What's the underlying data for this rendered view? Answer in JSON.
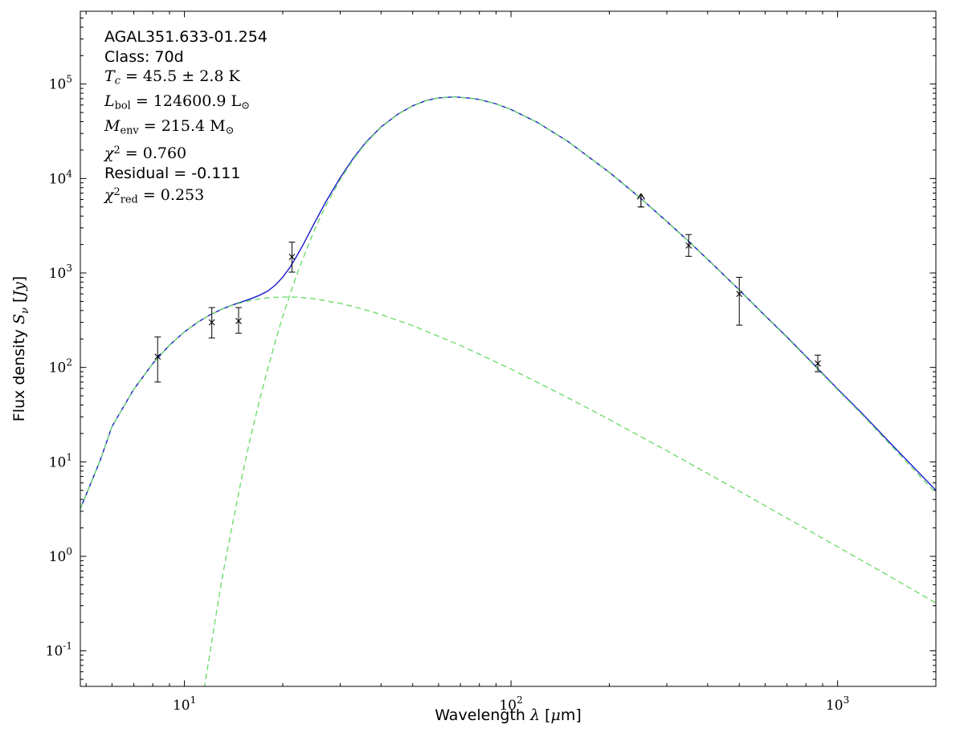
{
  "figure": {
    "background": "#ffffff",
    "annotation_lines": [
      {
        "segments": [
          {
            "t": "AGAL351.633-01.254",
            "s": "sans"
          }
        ]
      },
      {
        "segments": [
          {
            "t": "Class: 70d",
            "s": "sans"
          }
        ]
      },
      {
        "segments": [
          {
            "t": "T",
            "s": "it"
          },
          {
            "t": "c",
            "s": "subit"
          },
          {
            "t": " = 45.5 ± 2.8 K",
            "s": "rm"
          }
        ]
      },
      {
        "segments": [
          {
            "t": "L",
            "s": "it"
          },
          {
            "t": "bol",
            "s": "sub"
          },
          {
            "t": " = 124600.9 L",
            "s": "rm"
          },
          {
            "t": "⊙",
            "s": "sub"
          }
        ]
      },
      {
        "segments": [
          {
            "t": "M",
            "s": "it"
          },
          {
            "t": "env",
            "s": "sub"
          },
          {
            "t": " = 215.4 M",
            "s": "rm"
          },
          {
            "t": "⊙",
            "s": "sub"
          }
        ]
      },
      {
        "segments": [
          {
            "t": "χ",
            "s": "it"
          },
          {
            "t": "2",
            "s": "sup"
          },
          {
            "t": " = 0.760",
            "s": "rm"
          }
        ]
      },
      {
        "segments": [
          {
            "t": "Residual = -0.111",
            "s": "sans"
          }
        ]
      },
      {
        "segments": [
          {
            "t": "χ",
            "s": "it"
          },
          {
            "t": "2",
            "s": "sup"
          },
          {
            "t": "red",
            "s": "sub"
          },
          {
            "t": " = 0.253",
            "s": "rm"
          }
        ]
      }
    ]
  },
  "chart_data": {
    "type": "line",
    "x_scale": "log",
    "y_scale": "log",
    "xlim": [
      4.8,
      2000
    ],
    "ylim": [
      0.042,
      590000
    ],
    "grid": false,
    "legend": false,
    "xlabel": "Wavelength λ [μm]",
    "ylabel": "Flux density S_ν [Jy]",
    "xlabel_segments": [
      {
        "t": "Wavelength ",
        "s": "sans"
      },
      {
        "t": "λ",
        "s": "it"
      },
      {
        "t": " [",
        "s": "sans"
      },
      {
        "t": "μ",
        "s": "it"
      },
      {
        "t": "m]",
        "s": "sans"
      }
    ],
    "ylabel_segments": [
      {
        "t": "Flux density ",
        "s": "sans"
      },
      {
        "t": "S",
        "s": "it"
      },
      {
        "t": "ν",
        "s": "subit"
      },
      {
        "t": " [",
        "s": "sans"
      },
      {
        "t": "Jy",
        "s": "it"
      },
      {
        "t": "]",
        "s": "sans"
      }
    ],
    "x_major_tick_exponents": [
      1,
      2,
      3
    ],
    "y_major_tick_exponents": [
      -1,
      0,
      1,
      2,
      3,
      4,
      5
    ],
    "colors": {
      "model_fit": "#1a1acd",
      "components": "#6fdc6f",
      "data": "#000000",
      "frame": "#000000"
    },
    "series": [
      {
        "name": "total_model_fit",
        "color_key": "model_fit",
        "line_style": "solid",
        "x": [
          4.8,
          5.5,
          6,
          7,
          8,
          9,
          10,
          11,
          12,
          13,
          14,
          15,
          16,
          17,
          18,
          19,
          20,
          21,
          22,
          23,
          25,
          27,
          30,
          33,
          36,
          40,
          45,
          50,
          55,
          60,
          67,
          75,
          80,
          90,
          100,
          120,
          150,
          200,
          250,
          300,
          350,
          400,
          500,
          600,
          700,
          870,
          1000,
          1200,
          1500,
          2000
        ],
        "y": [
          3.2,
          10,
          23.7,
          58.8,
          110,
          172,
          238,
          302,
          362,
          413,
          457,
          495,
          534,
          582,
          644,
          746,
          904,
          1134,
          1480,
          1939,
          3373,
          5543,
          10226,
          16641,
          24306,
          35163,
          47917,
          58877,
          66944,
          71316,
          73183,
          70854,
          68639,
          61715,
          53796,
          39570,
          24447,
          11628,
          6139,
          3503,
          2160,
          1395,
          662,
          352,
          210,
          97.3,
          59.1,
          31.5,
          14,
          5.0
        ]
      },
      {
        "name": "cold_envelope_component",
        "color_key": "components",
        "line_style": "dashed",
        "x": [
          11.5,
          12,
          12.5,
          13,
          13.5,
          14,
          15,
          16,
          17,
          18,
          19,
          20,
          21,
          22,
          23,
          25,
          27,
          30,
          33,
          36,
          40,
          45,
          50,
          55,
          60,
          67,
          75,
          80,
          90,
          100,
          120,
          150,
          200,
          250,
          300,
          350,
          400,
          500,
          600,
          700,
          870,
          1000,
          1200,
          1500,
          2000
        ],
        "y": [
          0.04,
          0.1,
          0.24,
          0.55,
          1.11,
          2.1,
          7.0,
          19.2,
          45.7,
          97,
          191,
          347,
          576,
          926,
          1390,
          2840,
          5030,
          9750,
          16200,
          23900,
          34800,
          47600,
          58600,
          66700,
          71100,
          73000,
          70700,
          68500,
          61600,
          53700,
          39500,
          24400,
          11600,
          6120,
          3490,
          2150,
          1387,
          657,
          349,
          207,
          95.6,
          57.8,
          30.6,
          13.4,
          4.67
        ]
      },
      {
        "name": "hot_component",
        "color_key": "components",
        "line_style": "dashed",
        "x": [
          4.8,
          5.5,
          6,
          7,
          8,
          9,
          10,
          11,
          12,
          13,
          14,
          16,
          18,
          20,
          22,
          25,
          30,
          35,
          40,
          50,
          70,
          100,
          150,
          200,
          300,
          500,
          870,
          1500,
          2000
        ],
        "y": [
          3.2,
          10,
          23.7,
          58.8,
          110,
          172,
          238,
          302,
          362,
          412,
          455,
          515,
          547,
          557,
          554,
          533,
          476,
          417,
          363,
          277,
          171,
          96,
          47.4,
          28.1,
          13.1,
          4.91,
          1.66,
          0.57,
          0.32
        ]
      }
    ],
    "data_points": [
      {
        "x": 8.28,
        "y": 130,
        "ylo": 70,
        "yhi": 210,
        "kind": "detection"
      },
      {
        "x": 12.13,
        "y": 300,
        "ylo": 205,
        "yhi": 430,
        "kind": "detection"
      },
      {
        "x": 14.65,
        "y": 310,
        "ylo": 230,
        "yhi": 430,
        "kind": "detection"
      },
      {
        "x": 21.34,
        "y": 1480,
        "ylo": 1020,
        "yhi": 2120,
        "kind": "detection"
      },
      {
        "x": 250,
        "y": 5000,
        "kind": "lower_limit"
      },
      {
        "x": 350,
        "y": 1950,
        "ylo": 1500,
        "yhi": 2550,
        "kind": "detection"
      },
      {
        "x": 500,
        "y": 600,
        "ylo": 280,
        "yhi": 900,
        "kind": "detection"
      },
      {
        "x": 870,
        "y": 110,
        "ylo": 90,
        "yhi": 135,
        "kind": "detection"
      }
    ],
    "marker": "x"
  }
}
